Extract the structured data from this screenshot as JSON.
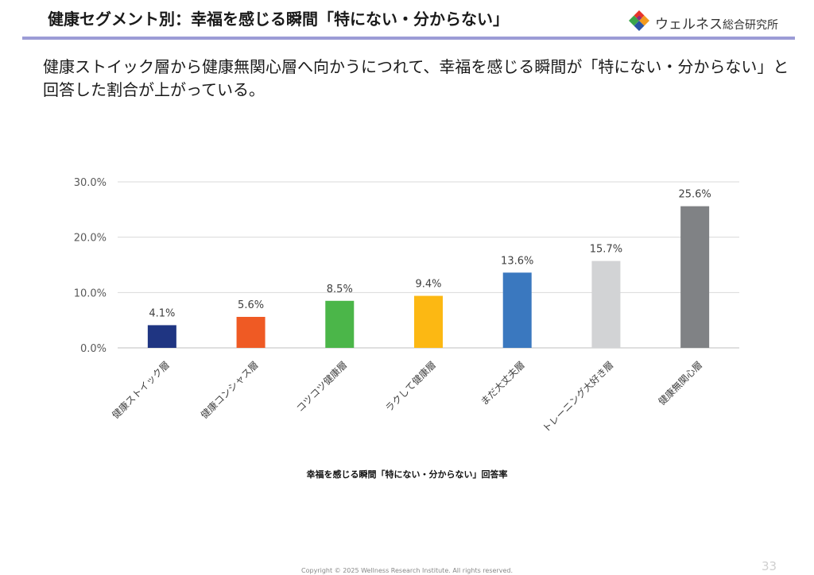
{
  "header": {
    "title": "健康セグメント別：幸福を感じる瞬間「特にない・分からない」",
    "logo": {
      "name": "ウェルネス",
      "suffix": "総合研究所",
      "icon": "diamond-mosaic-logo-icon"
    }
  },
  "lead_text": "健康ストイック層から健康無関心層へ向かうにつれて、幸福を感じる瞬間が「特にない・分からない」と回答した割合が上がっている。",
  "chart_data": {
    "type": "bar",
    "categories": [
      "健康ストイック層",
      "健康コンシャス層",
      "コツコツ健康層",
      "ラクして健康層",
      "まだ大丈夫層",
      "トレーニング大好き層",
      "健康無関心層"
    ],
    "values": [
      4.1,
      5.6,
      8.5,
      9.4,
      13.6,
      15.7,
      25.6
    ],
    "value_labels": [
      "4.1%",
      "5.6%",
      "8.5%",
      "9.4%",
      "13.6%",
      "15.7%",
      "25.6%"
    ],
    "colors": [
      "#1f3582",
      "#ef5a24",
      "#4bb649",
      "#fcb813",
      "#3a78bf",
      "#d2d3d5",
      "#808285"
    ],
    "ylim": [
      0,
      30
    ],
    "yticks": [
      0,
      10,
      20,
      30
    ],
    "ytick_labels": [
      "0.0%",
      "10.0%",
      "20.0%",
      "30.0%"
    ],
    "grid": true,
    "legend": "none",
    "xlabel": "幸福を感じる瞬間「特にない・分からない」回答率",
    "ylabel": ""
  },
  "footer": {
    "copyright": "Copyright © 2025 Wellness Research Institute. All rights reserved.",
    "page_number": "33"
  }
}
